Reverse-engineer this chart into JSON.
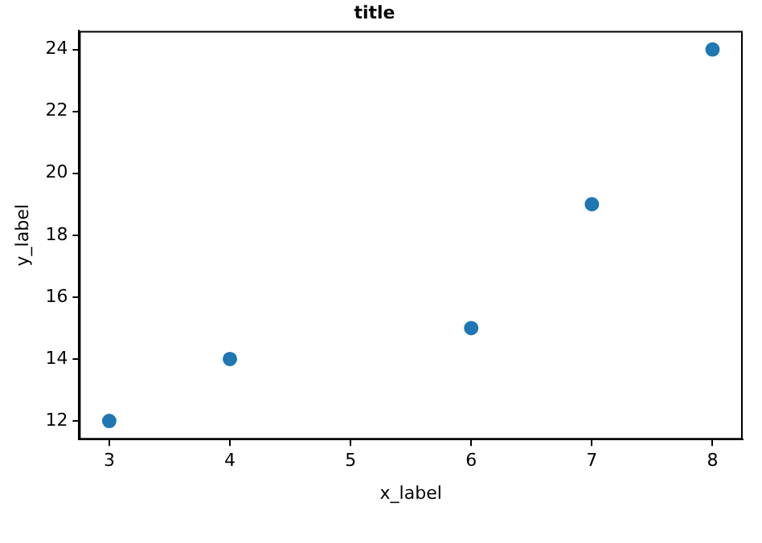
{
  "chart_data": {
    "type": "scatter",
    "title": "title",
    "xlabel": "x_label",
    "ylabel": "y_label",
    "x": [
      3,
      4,
      6,
      7,
      8
    ],
    "series": [
      {
        "color": "#1f77b4",
        "values": [
          12,
          14,
          15,
          19,
          24
        ]
      }
    ],
    "xlim": [
      2.75,
      8.25
    ],
    "xticks": [
      3,
      4,
      5,
      6,
      7,
      8
    ],
    "ylim": [
      11.4,
      24.6
    ],
    "yticks": [
      12,
      14,
      16,
      18,
      20,
      22,
      24
    ],
    "grid": false,
    "legend": false,
    "marker": "circle"
  }
}
